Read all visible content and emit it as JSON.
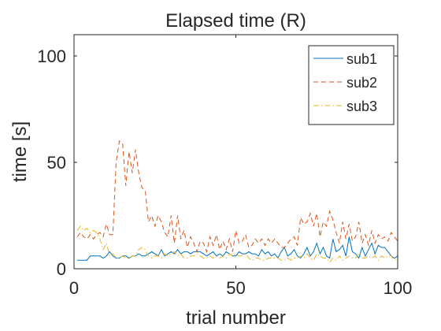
{
  "chart_data": {
    "type": "line",
    "title": "Elapsed time (R)",
    "xlabel": "trial number",
    "ylabel": "time [s]",
    "xlim": [
      0,
      100
    ],
    "ylim": [
      0,
      110
    ],
    "x_ticks": [
      0,
      50,
      100
    ],
    "y_ticks": [
      0,
      50,
      100
    ],
    "grid": false,
    "legend_position": "top-right",
    "series": [
      {
        "name": "sub1",
        "color": "#0072BD",
        "dash": "solid",
        "x": [
          1,
          2,
          3,
          4,
          5,
          6,
          7,
          8,
          9,
          10,
          11,
          12,
          13,
          14,
          15,
          16,
          17,
          18,
          19,
          20,
          21,
          22,
          23,
          24,
          25,
          26,
          27,
          28,
          29,
          30,
          31,
          32,
          33,
          34,
          35,
          36,
          37,
          38,
          39,
          40,
          41,
          42,
          43,
          44,
          45,
          46,
          47,
          48,
          49,
          50,
          51,
          52,
          53,
          54,
          55,
          56,
          57,
          58,
          59,
          60,
          61,
          62,
          63,
          64,
          65,
          66,
          67,
          68,
          69,
          70,
          71,
          72,
          73,
          74,
          75,
          76,
          77,
          78,
          79,
          80,
          81,
          82,
          83,
          84,
          85,
          86,
          87,
          88,
          89,
          90,
          91,
          92,
          93,
          94,
          95,
          96,
          97,
          98,
          99,
          100
        ],
        "values": [
          4,
          4,
          4,
          4,
          6,
          6,
          6,
          6,
          5,
          6,
          8,
          6,
          5,
          5,
          6,
          6,
          5,
          6,
          6,
          7,
          6,
          6,
          7,
          8,
          7,
          6,
          9,
          6,
          7,
          8,
          7,
          9,
          7,
          8,
          8,
          7,
          8,
          8,
          8,
          7,
          6,
          7,
          8,
          6,
          7,
          6,
          8,
          7,
          6,
          6,
          8,
          7,
          7,
          8,
          7,
          7,
          6,
          9,
          7,
          8,
          6,
          7,
          5,
          8,
          10,
          6,
          7,
          9,
          6,
          5,
          7,
          10,
          6,
          8,
          12,
          7,
          10,
          6,
          5,
          14,
          8,
          9,
          11,
          6,
          15,
          8,
          7,
          5,
          10,
          6,
          9,
          12,
          7,
          11,
          10,
          10,
          8,
          6,
          5,
          6
        ]
      },
      {
        "name": "sub2",
        "color": "#D95319",
        "dash": "dashed",
        "x": [
          1,
          2,
          3,
          4,
          5,
          6,
          7,
          8,
          9,
          10,
          11,
          12,
          13,
          14,
          15,
          16,
          17,
          18,
          19,
          20,
          21,
          22,
          23,
          24,
          25,
          26,
          27,
          28,
          29,
          30,
          31,
          32,
          33,
          34,
          35,
          36,
          37,
          38,
          39,
          40,
          41,
          42,
          43,
          44,
          45,
          46,
          47,
          48,
          49,
          50,
          51,
          52,
          53,
          54,
          55,
          56,
          57,
          58,
          59,
          60,
          61,
          62,
          63,
          64,
          65,
          66,
          67,
          68,
          69,
          70,
          71,
          72,
          73,
          74,
          75,
          76,
          77,
          78,
          79,
          80,
          81,
          82,
          83,
          84,
          85,
          86,
          87,
          88,
          89,
          90,
          91,
          92,
          93,
          94,
          95,
          96,
          97,
          98,
          99,
          100
        ],
        "values": [
          15,
          17,
          15,
          14,
          16,
          14,
          16,
          17,
          15,
          21,
          16,
          16,
          50,
          60,
          59,
          39,
          55,
          45,
          56,
          45,
          38,
          37,
          22,
          25,
          20,
          25,
          22,
          17,
          15,
          25,
          12,
          25,
          14,
          18,
          10,
          15,
          12,
          8,
          13,
          12,
          8,
          15,
          11,
          16,
          9,
          13,
          9,
          14,
          8,
          18,
          12,
          13,
          16,
          10,
          11,
          14,
          12,
          14,
          11,
          14,
          12,
          14,
          12,
          10,
          10,
          12,
          14,
          15,
          11,
          24,
          21,
          22,
          26,
          20,
          26,
          15,
          22,
          20,
          27,
          23,
          17,
          12,
          22,
          14,
          21,
          13,
          15,
          22,
          12,
          16,
          11,
          18,
          12,
          16,
          14,
          15,
          13,
          17,
          15,
          13
        ]
      },
      {
        "name": "sub3",
        "color": "#EDB120",
        "dash": "dashdot",
        "x": [
          1,
          2,
          3,
          4,
          5,
          6,
          7,
          8,
          9,
          10,
          11,
          12,
          13,
          14,
          15,
          16,
          17,
          18,
          19,
          20,
          21,
          22,
          23,
          24,
          25,
          26,
          27,
          28,
          29,
          30,
          31,
          32,
          33,
          34,
          35,
          36,
          37,
          38,
          39,
          40,
          41,
          42,
          43,
          44,
          45,
          46,
          47,
          48,
          49,
          50,
          51,
          52,
          53,
          54,
          55,
          56,
          57,
          58,
          59,
          60,
          61,
          62,
          63,
          64,
          65,
          66,
          67,
          68,
          69,
          70,
          71,
          72,
          73,
          74,
          75,
          76,
          77,
          78,
          79,
          80,
          81,
          82,
          83,
          84,
          85,
          86,
          87,
          88,
          89,
          90,
          91,
          92,
          93,
          94,
          95,
          96,
          97,
          98,
          99,
          100
        ],
        "values": [
          18,
          20,
          18,
          19,
          17,
          18,
          17,
          14,
          9,
          12,
          6,
          7,
          5,
          5,
          6,
          5,
          5,
          6,
          6,
          9,
          10,
          9,
          6,
          5,
          6,
          6,
          5,
          7,
          6,
          7,
          8,
          6,
          7,
          5,
          5,
          6,
          6,
          7,
          6,
          5,
          5,
          6,
          5,
          6,
          5,
          6,
          5,
          7,
          6,
          7,
          6,
          6,
          7,
          5,
          4,
          5,
          5,
          4,
          4,
          5,
          5,
          5,
          5,
          4,
          4,
          5,
          4,
          5,
          5,
          6,
          5,
          7,
          5,
          4,
          7,
          6,
          5,
          5,
          3,
          5,
          4,
          6,
          4,
          5,
          6,
          5,
          5,
          7,
          5,
          5,
          6,
          5,
          6,
          4,
          6,
          5,
          6,
          6,
          4,
          5
        ]
      }
    ]
  }
}
